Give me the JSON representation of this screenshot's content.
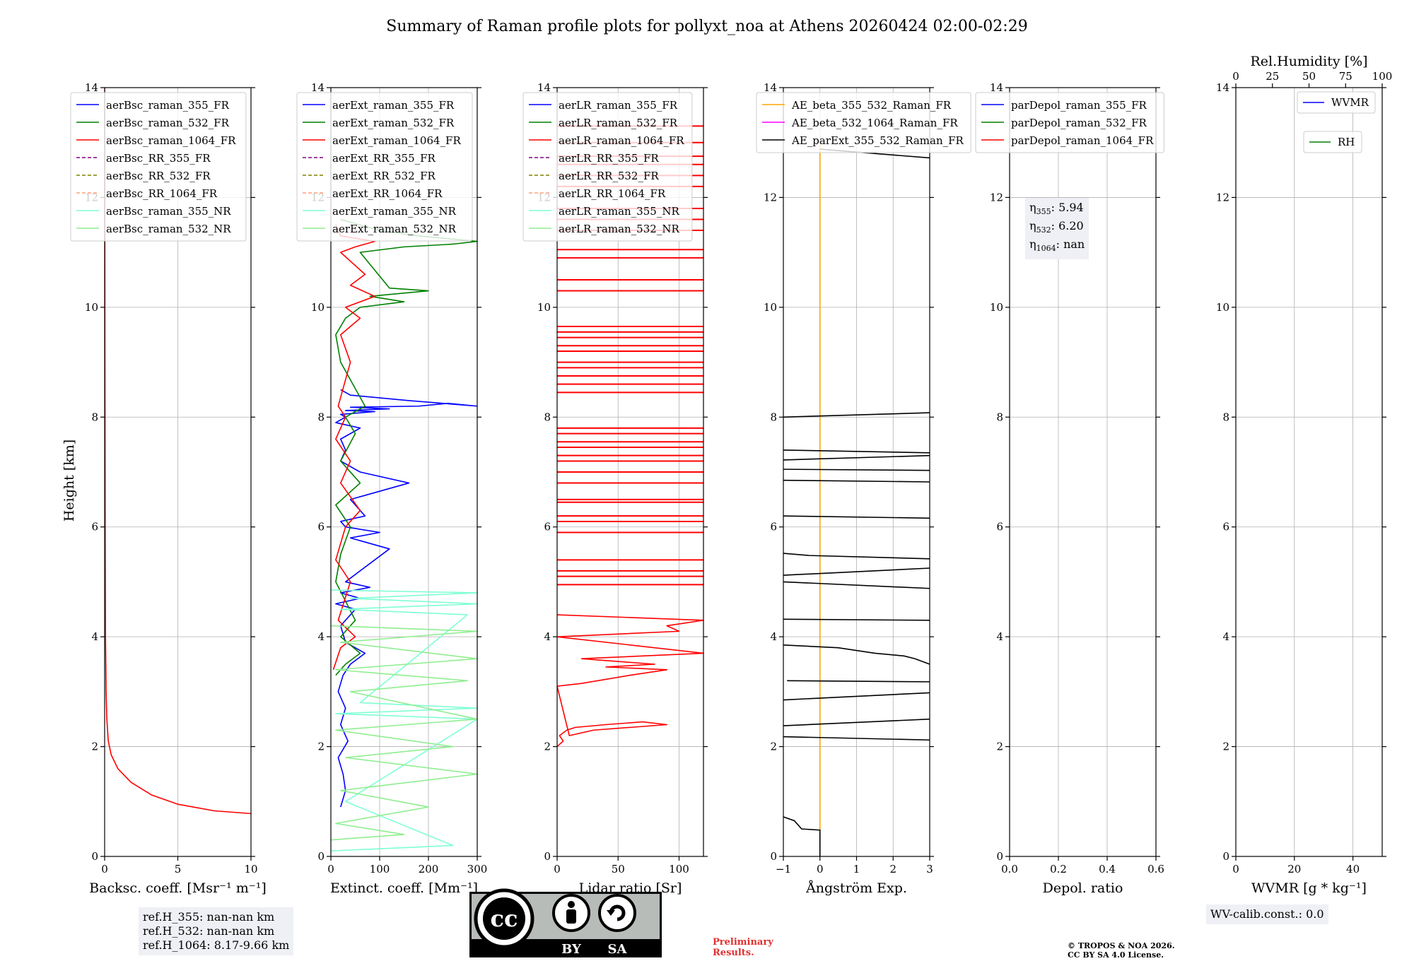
{
  "title": "Summary of Raman profile plots for pollyxt_noa at Athens 20260424 02:00-02:29",
  "chart_data": [
    {
      "type": "line",
      "id": "backscatter",
      "xlabel": "Backsc. coeff. [Msr⁻¹ m⁻¹]",
      "ylabel": "Height [km]",
      "xlim": [
        0,
        10
      ],
      "ylim": [
        0,
        14
      ],
      "xticks": [
        0,
        5,
        10
      ],
      "yticks": [
        0,
        2,
        4,
        6,
        8,
        10,
        12,
        14
      ],
      "grid": true,
      "legend": "top",
      "legend_entries": [
        {
          "name": "aerBsc_raman_355_FR",
          "color": "#0000ff",
          "dash": false
        },
        {
          "name": "aerBsc_raman_532_FR",
          "color": "#008000",
          "dash": false
        },
        {
          "name": "aerBsc_raman_1064_FR",
          "color": "#ff0000",
          "dash": false
        },
        {
          "name": "aerBsc_RR_355_FR",
          "color": "#800080",
          "dash": true
        },
        {
          "name": "aerBsc_RR_532_FR",
          "color": "#808000",
          "dash": true
        },
        {
          "name": "aerBsc_RR_1064_FR",
          "color": "#ffa07a",
          "dash": true
        },
        {
          "name": "aerBsc_raman_355_NR",
          "color": "#7fffd4",
          "dash": false
        },
        {
          "name": "aerBsc_raman_532_NR",
          "color": "#90ee90",
          "dash": false
        }
      ],
      "series": [
        {
          "name": "aerBsc_raman_1064_FR",
          "color": "#ff0000",
          "x": [
            10.0,
            7.5,
            5.0,
            3.2,
            1.8,
            0.9,
            0.45,
            0.25,
            0.15,
            0.1,
            0.06,
            0.04,
            0.02,
            0.01,
            0.0
          ],
          "y": [
            0.78,
            0.83,
            0.95,
            1.12,
            1.35,
            1.6,
            1.85,
            2.1,
            2.5,
            3.0,
            4.0,
            6.0,
            9.0,
            12.0,
            14.0
          ]
        }
      ]
    },
    {
      "type": "line",
      "id": "extinction",
      "xlabel": "Extinct. coeff. [Mm⁻¹]",
      "xlim": [
        0,
        300
      ],
      "ylim": [
        0,
        14
      ],
      "xticks": [
        0,
        100,
        200,
        300
      ],
      "yticks": [
        0,
        2,
        4,
        6,
        8,
        10,
        12,
        14
      ],
      "grid": true,
      "legend": "top",
      "legend_entries": [
        {
          "name": "aerExt_raman_355_FR",
          "color": "#0000ff",
          "dash": false
        },
        {
          "name": "aerExt_raman_532_FR",
          "color": "#008000",
          "dash": false
        },
        {
          "name": "aerExt_raman_1064_FR",
          "color": "#ff0000",
          "dash": false
        },
        {
          "name": "aerExt_RR_355_FR",
          "color": "#800080",
          "dash": true
        },
        {
          "name": "aerExt_RR_532_FR",
          "color": "#808000",
          "dash": true
        },
        {
          "name": "aerExt_RR_1064_FR",
          "color": "#ffa07a",
          "dash": true
        },
        {
          "name": "aerExt_raman_355_NR",
          "color": "#7fffd4",
          "dash": false
        },
        {
          "name": "aerExt_raman_532_NR",
          "color": "#90ee90",
          "dash": false
        }
      ],
      "series": [
        {
          "name": "aerExt_raman_355_FR",
          "color": "#0000ff",
          "x": [
            20,
            30,
            25,
            15,
            35,
            20,
            30,
            15,
            25,
            40,
            70,
            30,
            20,
            50,
            10,
            60,
            20,
            80,
            30,
            120,
            40,
            100,
            30,
            20,
            70,
            40,
            160,
            60,
            20,
            30,
            20,
            60,
            10,
            30,
            20,
            90,
            30,
            120,
            40,
            180,
            240,
            300,
            160,
            40,
            20
          ],
          "y": [
            0.9,
            1.2,
            1.5,
            1.8,
            2.1,
            2.4,
            2.7,
            3.0,
            3.3,
            3.5,
            3.7,
            3.9,
            4.2,
            4.5,
            4.6,
            4.7,
            4.8,
            4.9,
            5.0,
            5.6,
            5.8,
            5.9,
            6.0,
            6.1,
            6.2,
            6.5,
            6.8,
            7.0,
            7.2,
            7.4,
            7.6,
            7.8,
            7.9,
            8.0,
            8.05,
            8.1,
            8.12,
            8.15,
            8.18,
            8.2,
            8.25,
            8.2,
            8.3,
            8.4,
            8.5
          ]
        },
        {
          "name": "aerExt_raman_532_FR",
          "color": "#008000",
          "x": [
            10,
            30,
            60,
            20,
            50,
            10,
            20,
            40,
            10,
            60,
            20,
            50,
            30,
            70,
            20,
            10,
            30,
            60,
            150,
            80,
            200,
            120,
            60,
            150,
            250,
            300,
            180,
            100,
            60,
            20
          ],
          "y": [
            3.3,
            3.5,
            3.7,
            4.0,
            4.3,
            5.0,
            5.5,
            6.0,
            6.4,
            6.8,
            7.2,
            7.7,
            8.0,
            8.2,
            9.0,
            9.5,
            9.8,
            10.0,
            10.1,
            10.2,
            10.3,
            10.35,
            11.0,
            11.1,
            11.15,
            11.2,
            11.3,
            11.4,
            11.5,
            11.6
          ]
        },
        {
          "name": "aerExt_raman_1064_FR",
          "color": "#ff0000",
          "x": [
            5,
            20,
            50,
            15,
            40,
            10,
            30,
            60,
            20,
            40,
            10,
            30,
            15,
            40,
            20,
            60,
            30,
            90,
            40,
            70,
            20,
            50,
            90,
            20,
            10
          ],
          "y": [
            3.4,
            3.8,
            4.0,
            4.3,
            5.0,
            5.4,
            6.0,
            6.3,
            6.8,
            7.2,
            7.6,
            8.0,
            8.2,
            9.0,
            9.5,
            9.8,
            10.0,
            10.2,
            10.4,
            10.6,
            11.0,
            11.1,
            11.2,
            11.3,
            11.5
          ]
        },
        {
          "name": "aerExt_raman_355_NR",
          "color": "#7fffd4",
          "x": [
            0,
            300,
            40,
            300,
            20,
            280,
            60,
            300,
            10,
            300,
            30,
            250,
            0
          ],
          "y": [
            4.85,
            4.8,
            4.7,
            4.6,
            4.5,
            4.4,
            2.8,
            2.7,
            2.6,
            2.5,
            1.0,
            0.2,
            0.1
          ]
        },
        {
          "name": "aerExt_raman_532_NR",
          "color": "#90ee90",
          "x": [
            0,
            300,
            20,
            300,
            10,
            280,
            40,
            300,
            10,
            250,
            30,
            300,
            20,
            200,
            10,
            150,
            0
          ],
          "y": [
            4.2,
            4.1,
            3.9,
            3.6,
            3.4,
            3.2,
            3.0,
            2.5,
            2.3,
            2.0,
            1.8,
            1.5,
            1.2,
            0.9,
            0.6,
            0.4,
            0.3
          ]
        }
      ]
    },
    {
      "type": "line",
      "id": "lidar_ratio",
      "xlabel": "Lidar ratio [Sr]",
      "xlim": [
        0,
        120
      ],
      "ylim": [
        0,
        14
      ],
      "xticks": [
        0,
        50,
        100
      ],
      "yticks": [
        0,
        2,
        4,
        6,
        8,
        10,
        12,
        14
      ],
      "grid": true,
      "legend": "top",
      "legend_entries": [
        {
          "name": "aerLR_raman_355_FR",
          "color": "#0000ff",
          "dash": false
        },
        {
          "name": "aerLR_raman_532_FR",
          "color": "#008000",
          "dash": false
        },
        {
          "name": "aerLR_raman_1064_FR",
          "color": "#ff0000",
          "dash": false
        },
        {
          "name": "aerLR_RR_355_FR",
          "color": "#800080",
          "dash": true
        },
        {
          "name": "aerLR_RR_532_FR",
          "color": "#808000",
          "dash": true
        },
        {
          "name": "aerLR_RR_1064_FR",
          "color": "#ffa07a",
          "dash": true
        },
        {
          "name": "aerLR_raman_355_NR",
          "color": "#7fffd4",
          "dash": false
        },
        {
          "name": "aerLR_raman_532_NR",
          "color": "#90ee90",
          "dash": false
        }
      ],
      "series": [
        {
          "name": "aerLR_raman_1064_FR",
          "color": "#ff0000",
          "x": [
            0,
            5,
            2,
            8,
            15,
            40,
            70,
            90,
            60,
            30,
            10,
            0,
            20,
            60,
            90,
            40,
            80,
            20,
            120,
            0,
            100,
            90,
            120,
            0
          ],
          "y": [
            2.0,
            2.1,
            2.2,
            2.3,
            2.35,
            2.4,
            2.45,
            2.4,
            2.35,
            2.3,
            2.2,
            3.1,
            3.15,
            3.3,
            3.4,
            3.45,
            3.5,
            3.6,
            3.7,
            4.0,
            4.1,
            4.2,
            4.3,
            4.4
          ]
        },
        {
          "name": "aerLR_bands_1064",
          "color": "#ff0000",
          "bands_y": [
            4.95,
            5.1,
            5.2,
            5.4,
            5.9,
            6.1,
            6.2,
            6.45,
            6.5,
            6.8,
            7.0,
            7.2,
            7.3,
            7.45,
            7.55,
            7.7,
            7.8,
            8.45,
            8.6,
            8.75,
            8.9,
            9.0,
            9.2,
            9.3,
            9.45,
            9.55,
            9.65,
            10.3,
            10.5,
            10.9,
            11.05,
            11.4,
            11.6,
            11.8,
            12.2,
            12.4,
            12.6,
            12.75,
            13.0,
            13.3
          ]
        }
      ]
    },
    {
      "type": "line",
      "id": "angstrom",
      "xlabel": "Ångström Exp.",
      "xlim": [
        -1,
        3
      ],
      "ylim": [
        0,
        14
      ],
      "xticks": [
        -1,
        0,
        1,
        2,
        3
      ],
      "yticks": [
        0,
        2,
        4,
        6,
        8,
        10,
        12,
        14
      ],
      "grid": true,
      "legend": "top",
      "legend_entries": [
        {
          "name": "AE_beta_355_532_Raman_FR",
          "color": "#ffa500",
          "dash": false
        },
        {
          "name": "AE_beta_532_1064_Raman_FR",
          "color": "#ff00ff",
          "dash": false
        },
        {
          "name": "AE_parExt_355_532_Raman_FR",
          "color": "#000000",
          "dash": false
        }
      ],
      "series": [
        {
          "name": "AE_beta_355_532_Raman_FR",
          "color": "#ffa500",
          "x": [
            0,
            0
          ],
          "y": [
            0,
            13.0
          ]
        },
        {
          "name": "AE_parExt_355_532_Raman_FR",
          "color": "#000000",
          "segments": [
            [
              [
                -1.0,
                0.72
              ],
              [
                -0.7,
                0.65
              ],
              [
                -0.5,
                0.5
              ],
              [
                0.0,
                0.48
              ],
              [
                0.0,
                0.0
              ]
            ],
            [
              [
                -1.0,
                2.18
              ],
              [
                3.0,
                2.12
              ]
            ],
            [
              [
                -1.0,
                2.38
              ],
              [
                3.0,
                2.5
              ]
            ],
            [
              [
                -1.0,
                2.85
              ],
              [
                3.0,
                2.98
              ]
            ],
            [
              [
                -0.9,
                3.2
              ],
              [
                3.0,
                3.18
              ]
            ],
            [
              [
                -1.0,
                3.85
              ],
              [
                0.5,
                3.8
              ],
              [
                1.5,
                3.7
              ],
              [
                2.3,
                3.65
              ],
              [
                2.6,
                3.6
              ],
              [
                3.0,
                3.5
              ]
            ],
            [
              [
                -1.0,
                4.32
              ],
              [
                3.0,
                4.3
              ]
            ],
            [
              [
                -1.0,
                5.0
              ],
              [
                3.0,
                4.88
              ]
            ],
            [
              [
                -1.0,
                5.12
              ],
              [
                3.0,
                5.25
              ]
            ],
            [
              [
                -1.0,
                5.52
              ],
              [
                -0.3,
                5.48
              ],
              [
                3.0,
                5.42
              ]
            ],
            [
              [
                -1.0,
                6.2
              ],
              [
                3.0,
                6.16
              ]
            ],
            [
              [
                -1.0,
                6.85
              ],
              [
                3.0,
                6.82
              ]
            ],
            [
              [
                -1.0,
                7.05
              ],
              [
                3.0,
                7.03
              ]
            ],
            [
              [
                -1.0,
                7.22
              ],
              [
                3.0,
                7.3
              ]
            ],
            [
              [
                -1.0,
                7.4
              ],
              [
                3.0,
                7.35
              ]
            ],
            [
              [
                -1.0,
                8.0
              ],
              [
                3.0,
                8.08
              ]
            ],
            [
              [
                0.0,
                12.88
              ],
              [
                3.0,
                12.72
              ]
            ]
          ]
        }
      ]
    },
    {
      "type": "line",
      "id": "depol",
      "xlabel": "Depol. ratio",
      "xlim": [
        0,
        0.6
      ],
      "ylim": [
        0,
        14
      ],
      "xticks": [
        0.0,
        0.2,
        0.4,
        0.6
      ],
      "xtick_labels": [
        "0.0",
        "0.2",
        "0.4",
        "0.6"
      ],
      "yticks": [
        0,
        2,
        4,
        6,
        8,
        10,
        12,
        14
      ],
      "grid": true,
      "legend": "top",
      "legend_entries": [
        {
          "name": "parDepol_raman_355_FR",
          "color": "#0000ff",
          "dash": false
        },
        {
          "name": "parDepol_raman_532_FR",
          "color": "#008000",
          "dash": false
        },
        {
          "name": "parDepol_raman_1064_FR",
          "color": "#ff0000",
          "dash": false
        }
      ],
      "series": []
    },
    {
      "type": "line",
      "id": "wvmr",
      "xlabel": "WVMR [g * kg⁻¹]",
      "xlim": [
        0,
        50
      ],
      "ylim": [
        0,
        14
      ],
      "xticks": [
        0,
        20,
        40
      ],
      "yticks": [
        0,
        2,
        4,
        6,
        8,
        10,
        12,
        14
      ],
      "grid": true,
      "top_axis_label": "Rel.Humidity [%]",
      "top_xticks": [
        0,
        25,
        50,
        75,
        100
      ],
      "legend_entries": [
        {
          "name": "WVMR",
          "color": "#0000ff",
          "dash": false
        },
        {
          "name": "RH",
          "color": "#008000",
          "dash": false
        }
      ],
      "series": []
    }
  ],
  "depol_annotation": [
    {
      "sym": "η",
      "sub": "355",
      "value": ": 5.94"
    },
    {
      "sym": "η",
      "sub": "532",
      "value": ": 6.20"
    },
    {
      "sym": "η",
      "sub": "1064",
      "value": ": nan"
    }
  ],
  "ref_heights": [
    "ref.H_355: nan-nan km",
    "ref.H_532: nan-nan km",
    "ref.H_1064: 8.17-9.66 km"
  ],
  "wv_calib": "WV-calib.const.: 0.0",
  "license_badge": {
    "left": "BY",
    "right": "SA"
  },
  "preliminary": [
    "Preliminary",
    "Results."
  ],
  "copyright": [
    "© TROPOS & NOA 2026.",
    "CC BY SA 4.0 License."
  ]
}
